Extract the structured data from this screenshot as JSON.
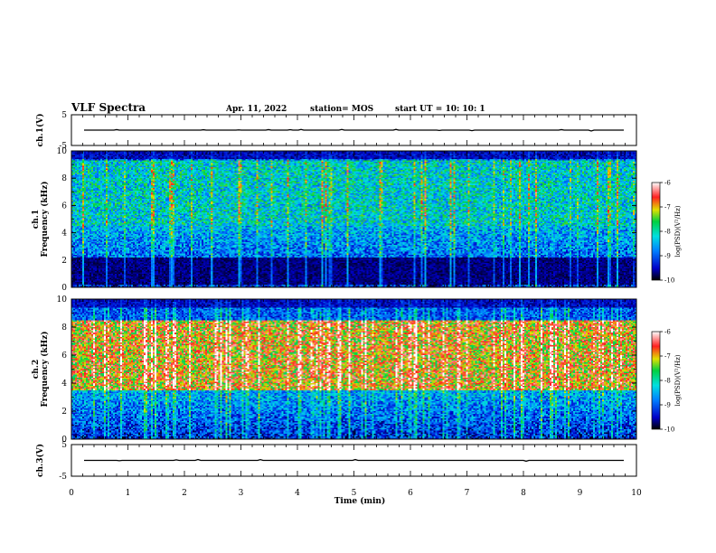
{
  "header": {
    "title": "VLF Spectra",
    "date": "Apr. 11, 2022",
    "station": "station= MOS",
    "start": "start  UT =   10: 10: 1"
  },
  "chart_data": {
    "type": "heatmap",
    "x": {
      "label": "Time  (min)",
      "range": [
        0,
        10
      ],
      "ticks": [
        "0",
        "1",
        "2",
        "3",
        "4",
        "5",
        "6",
        "7",
        "8",
        "9",
        "10"
      ]
    },
    "panels": [
      {
        "id": "ch1-waveform",
        "ylabel": "ch.1(V)",
        "range": [
          -5,
          5
        ],
        "ticks": [
          "5",
          "-5"
        ],
        "trace_level": 0
      },
      {
        "id": "ch1-spectrogram",
        "ylabel": "ch.1\nFrequency (kHz)",
        "range": [
          0,
          10
        ],
        "ticks": [
          "0",
          "2",
          "4",
          "6",
          "8",
          "10"
        ],
        "colorbar": {
          "label": "log(PSD)(V²/Hz)",
          "range": [
            -10,
            -6
          ],
          "ticks": [
            "-6",
            "-7",
            "-8",
            "-9",
            "-10"
          ]
        },
        "features": {
          "broadband_kHz": [
            4.5,
            9.3
          ],
          "dominant_level": -8.2,
          "sferic_spikes": "frequent",
          "dark_band_kHz": [
            0.2,
            2.2
          ]
        }
      },
      {
        "id": "ch2-spectrogram",
        "ylabel": "ch.2\nFrequency (kHz)",
        "range": [
          0,
          10
        ],
        "ticks": [
          "0",
          "2",
          "4",
          "6",
          "8",
          "10"
        ],
        "colorbar": {
          "label": "log(PSD)(V²/Hz)",
          "range": [
            -10,
            -6
          ],
          "ticks": [
            "-6",
            "-7",
            "-8",
            "-9",
            "-10"
          ]
        },
        "features": {
          "broadband_kHz": [
            3.5,
            8.5
          ],
          "dominant_level": -7.0,
          "sferic_spikes": "frequent"
        }
      },
      {
        "id": "ch3-waveform",
        "ylabel": "ch.3(V)",
        "range": [
          -5,
          5
        ],
        "ticks": [
          "5",
          "-5"
        ],
        "trace_level": 0
      }
    ]
  }
}
